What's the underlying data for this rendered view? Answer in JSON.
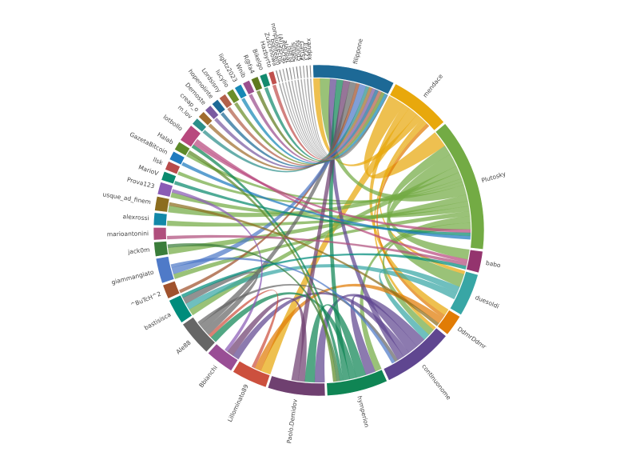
{
  "chart_data": {
    "type": "chord",
    "title": "",
    "groups": [
      {
        "name": "filippone",
        "value": 23,
        "color": "#1d6996"
      },
      {
        "name": "mendace",
        "value": 17,
        "color": "#e8a80c"
      },
      {
        "name": "Plutosky",
        "value": 37,
        "color": "#73ab44"
      },
      {
        "name": "babo",
        "value": 6,
        "color": "#94346e"
      },
      {
        "name": "duesoldi",
        "value": 12,
        "color": "#38a6a5"
      },
      {
        "name": "DdmrDdmr",
        "value": 6,
        "color": "#e17c05"
      },
      {
        "name": "continuonome",
        "value": 20,
        "color": "#5f4690"
      },
      {
        "name": "hymperion",
        "value": 17,
        "color": "#0f8554"
      },
      {
        "name": "Paolo.Demidov",
        "value": 16,
        "color": "#6f4070"
      },
      {
        "name": "Lillominato89",
        "value": 10,
        "color": "#cc503e"
      },
      {
        "name": "Bbianchi",
        "value": 8,
        "color": "#994e95"
      },
      {
        "name": "Ale88",
        "value": 10,
        "color": "#666666"
      },
      {
        "name": "bastisisca",
        "value": 7,
        "color": "#008c7c"
      },
      {
        "name": "^BuTcH^2",
        "value": 4,
        "color": "#a0522d"
      },
      {
        "name": "giammangiato",
        "value": 7,
        "color": "#4f7ac8"
      },
      {
        "name": "jack0m",
        "value": 4,
        "color": "#3a7d3a"
      },
      {
        "name": "marioantonini",
        "value": 3.5,
        "color": "#b04f7d"
      },
      {
        "name": "alexrossi",
        "value": 3.5,
        "color": "#1288a8"
      },
      {
        "name": "usque_ad_finem",
        "value": 4,
        "color": "#8c6d1f"
      },
      {
        "name": "Prova123",
        "value": 3.5,
        "color": "#8a5cb5"
      },
      {
        "name": "MarioV",
        "value": 2.5,
        "color": "#0b8a6e"
      },
      {
        "name": "llsk",
        "value": 2.5,
        "color": "#b84b4b"
      },
      {
        "name": "GazetaBitcoin",
        "value": 2.5,
        "color": "#1f7bbf"
      },
      {
        "name": "Halab",
        "value": 2.5,
        "color": "#5e8a2a"
      },
      {
        "name": "lotbollo",
        "value": 5,
        "color": "#b8497e"
      },
      {
        "name": "m.lov",
        "value": 2,
        "color": "#2c8f8a"
      },
      {
        "name": "creap_o",
        "value": 2,
        "color": "#a06d2e"
      },
      {
        "name": "Dernoste",
        "value": 2,
        "color": "#7a5aa0"
      },
      {
        "name": "hopenolinte",
        "value": 2,
        "color": "#1d6996"
      },
      {
        "name": "Lordsisny",
        "value": 2,
        "color": "#b3604a"
      },
      {
        "name": "lucylio",
        "value": 2,
        "color": "#6b8f2a"
      },
      {
        "name": "ligbtz2023",
        "value": 2,
        "color": "#1688b5"
      },
      {
        "name": "Wnib",
        "value": 2,
        "color": "#9a4f8e"
      },
      {
        "name": "R@fa4",
        "value": 2,
        "color": "#5f7a1f"
      },
      {
        "name": "Bikelgo",
        "value": 2,
        "color": "#138a6e"
      },
      {
        "name": "Hazbyrto",
        "value": 1.5,
        "color": "#c0504d"
      },
      {
        "name": "Zuschnowa",
        "value": 0.4,
        "color": "#7f7f7f"
      },
      {
        "name": "bonteam",
        "value": 0.4,
        "color": "#8c8c8c"
      },
      {
        "name": "nonplustecnic",
        "value": 0.4,
        "color": "#999999"
      },
      {
        "name": "(AI)Socrat",
        "value": 0.4,
        "color": "#7f7f7f"
      },
      {
        "name": "alanpar",
        "value": 0.4,
        "color": "#8c8c8c"
      },
      {
        "name": "Isbrid",
        "value": 0.4,
        "color": "#999999"
      },
      {
        "name": "simpic",
        "value": 0.4,
        "color": "#7f7f7f"
      },
      {
        "name": "found5",
        "value": 0.4,
        "color": "#8c8c8c"
      },
      {
        "name": "Gattsy",
        "value": 0.4,
        "color": "#999999"
      },
      {
        "name": "Eor23",
        "value": 0.4,
        "color": "#7f7f7f"
      },
      {
        "name": "xandex",
        "value": 0.4,
        "color": "#8c8c8c"
      }
    ],
    "links": [
      {
        "source": "mendace",
        "target": "Plutosky",
        "value": 5
      },
      {
        "source": "mendace",
        "target": "DdmrDdmr",
        "value": 2
      },
      {
        "source": "mendace",
        "target": "Lillominato89",
        "value": 3
      },
      {
        "source": "mendace",
        "target": "filippone",
        "value": 2
      },
      {
        "source": "mendace",
        "target": "duesoldi",
        "value": 1
      },
      {
        "source": "mendace",
        "target": "continuonome",
        "value": 1
      },
      {
        "source": "Plutosky",
        "target": "babo",
        "value": 3
      },
      {
        "source": "Plutosky",
        "target": "duesoldi",
        "value": 4
      },
      {
        "source": "Plutosky",
        "target": "bastisisca",
        "value": 2
      },
      {
        "source": "Plutosky",
        "target": "usque_ad_finem",
        "value": 2
      },
      {
        "source": "Plutosky",
        "target": "llsk",
        "value": 1
      },
      {
        "source": "Plutosky",
        "target": "Halab",
        "value": 1
      },
      {
        "source": "Plutosky",
        "target": "filippone",
        "value": 3
      },
      {
        "source": "Plutosky",
        "target": "jack0m",
        "value": 2
      },
      {
        "source": "Plutosky",
        "target": "alexrossi",
        "value": 1.5
      },
      {
        "source": "Plutosky",
        "target": "Prova123",
        "value": 1.5
      },
      {
        "source": "Plutosky",
        "target": "giammangiato",
        "value": 1.5
      },
      {
        "source": "Plutosky",
        "target": "hymperion",
        "value": 2
      },
      {
        "source": "Plutosky",
        "target": "continuonome",
        "value": 2
      },
      {
        "source": "duesoldi",
        "target": "continuonome",
        "value": 2
      },
      {
        "source": "duesoldi",
        "target": "bastisisca",
        "value": 2
      },
      {
        "source": "DdmrDdmr",
        "target": "mendace",
        "value": 1
      },
      {
        "source": "DdmrDdmr",
        "target": "Lillominato89",
        "value": 2
      },
      {
        "source": "continuonome",
        "target": "Paolo.Demidov",
        "value": 3
      },
      {
        "source": "continuonome",
        "target": "hymperion",
        "value": 3
      },
      {
        "source": "continuonome",
        "target": "Bbianchi",
        "value": 2
      },
      {
        "source": "continuonome",
        "target": "filippone",
        "value": 2
      },
      {
        "source": "hymperion",
        "target": "Paolo.Demidov",
        "value": 3
      },
      {
        "source": "hymperion",
        "target": "Ale88",
        "value": 2
      },
      {
        "source": "hymperion",
        "target": "filippone",
        "value": 2
      },
      {
        "source": "hymperion",
        "target": "lotbollo",
        "value": 1
      },
      {
        "source": "Paolo.Demidov",
        "target": "Bbianchi",
        "value": 2
      },
      {
        "source": "Paolo.Demidov",
        "target": "filippone",
        "value": 2
      },
      {
        "source": "Lillominato89",
        "target": "Ale88",
        "value": 1
      },
      {
        "source": "Ale88",
        "target": "bastisisca",
        "value": 2
      },
      {
        "source": "Ale88",
        "target": "filippone",
        "value": 2
      },
      {
        "source": "Ale88",
        "target": "continuonome",
        "value": 1
      },
      {
        "source": "^BuTcH^2",
        "target": "filippone",
        "value": 1
      },
      {
        "source": "giammangiato",
        "target": "filippone",
        "value": 2
      },
      {
        "source": "giammangiato",
        "target": "continuonome",
        "value": 1
      },
      {
        "source": "lotbollo",
        "target": "Plutosky",
        "value": 1
      },
      {
        "source": "lotbollo",
        "target": "babo",
        "value": 1
      },
      {
        "source": "marioantonini",
        "target": "babo",
        "value": 1
      },
      {
        "source": "jack0m",
        "target": "hymperion",
        "value": 1
      },
      {
        "source": "usque_ad_finem",
        "target": "DdmrDdmr",
        "value": 1
      },
      {
        "source": "MarioV",
        "target": "Plutosky",
        "value": 1
      },
      {
        "source": "GazetaBitcoin",
        "target": "Plutosky",
        "value": 1
      },
      {
        "source": "Halab",
        "target": "hymperion",
        "value": 1
      },
      {
        "source": "m.lov",
        "target": "filippone",
        "value": 1
      },
      {
        "source": "creap_o",
        "target": "filippone",
        "value": 1
      },
      {
        "source": "Dernoste",
        "target": "filippone",
        "value": 1
      },
      {
        "source": "hopenolinte",
        "target": "filippone",
        "value": 1
      },
      {
        "source": "Lordsisny",
        "target": "filippone",
        "value": 1
      },
      {
        "source": "lucylio",
        "target": "filippone",
        "value": 1
      },
      {
        "source": "ligbtz2023",
        "target": "filippone",
        "value": 1
      },
      {
        "source": "Wnib",
        "target": "filippone",
        "value": 1
      },
      {
        "source": "R@fa4",
        "target": "filippone",
        "value": 1
      },
      {
        "source": "Bikelgo",
        "target": "filippone",
        "value": 1
      },
      {
        "source": "Hazbyrto",
        "target": "filippone",
        "value": 1
      },
      {
        "source": "Zuschnowa",
        "target": "filippone",
        "value": 0.3
      },
      {
        "source": "bonteam",
        "target": "filippone",
        "value": 0.3
      },
      {
        "source": "nonplustecnic",
        "target": "filippone",
        "value": 0.3
      },
      {
        "source": "(AI)Socrat",
        "target": "filippone",
        "value": 0.3
      },
      {
        "source": "alanpar",
        "target": "filippone",
        "value": 0.3
      },
      {
        "source": "Isbrid",
        "target": "filippone",
        "value": 0.3
      },
      {
        "source": "simpic",
        "target": "filippone",
        "value": 0.3
      },
      {
        "source": "found5",
        "target": "filippone",
        "value": 0.3
      },
      {
        "source": "Gattsy",
        "target": "filippone",
        "value": 0.3
      },
      {
        "source": "Eor23",
        "target": "filippone",
        "value": 0.3
      },
      {
        "source": "xandex",
        "target": "filippone",
        "value": 0.3
      },
      {
        "source": "bastisisca",
        "target": "babo",
        "value": 1
      },
      {
        "source": "Prova123",
        "target": "Bbianchi",
        "value": 1
      }
    ]
  }
}
